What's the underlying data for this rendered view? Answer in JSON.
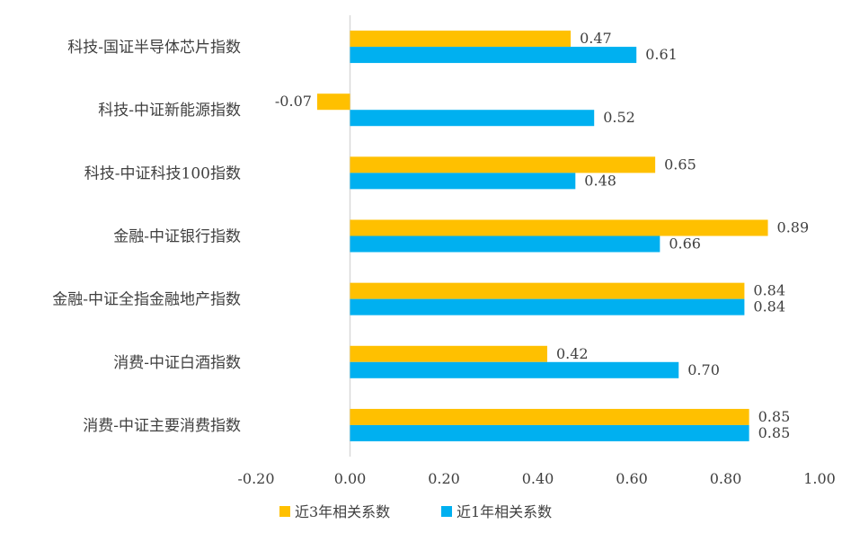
{
  "chart_data": {
    "type": "bar",
    "orientation": "horizontal",
    "categories": [
      "科技-国证半导体芯片指数",
      "科技-中证新能源指数",
      "科技-中证科技100指数",
      "金融-中证银行指数",
      "金融-中证全指金融地产指数",
      "消费-中证白酒指数",
      "消费-中证主要消费指数"
    ],
    "series": [
      {
        "name": "近3年相关系数",
        "color": "#FFC000",
        "values": [
          0.47,
          -0.07,
          0.65,
          0.89,
          0.84,
          0.42,
          0.85
        ],
        "labels": [
          "0.47",
          "-0.07",
          "0.65",
          "0.89",
          "0.84",
          "0.42",
          "0.85"
        ]
      },
      {
        "name": "近1年相关系数",
        "color": "#00B0F0",
        "values": [
          0.61,
          0.52,
          0.48,
          0.66,
          0.84,
          0.7,
          0.85
        ],
        "labels": [
          "0.61",
          "0.52",
          "0.48",
          "0.66",
          "0.84",
          "0.70",
          "0.85"
        ]
      }
    ],
    "xlim": [
      -0.2,
      1.0
    ],
    "xticks": [
      -0.2,
      0.0,
      0.2,
      0.4,
      0.6,
      0.8,
      1.0
    ],
    "xtick_labels": [
      "-0.20",
      "0.00",
      "0.20",
      "0.40",
      "0.60",
      "0.80",
      "1.00"
    ],
    "grid": false,
    "legend_position": "bottom"
  }
}
